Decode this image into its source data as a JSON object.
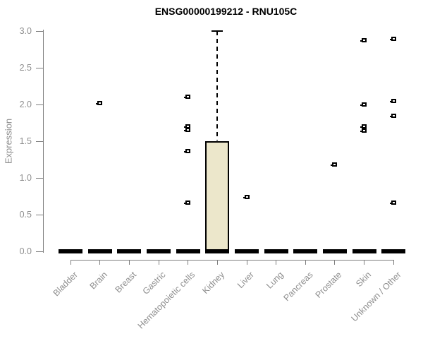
{
  "chart_data": {
    "type": "box",
    "title": "ENSG00000199212 - RNU105C",
    "ylabel": "Expression",
    "xlabel": "",
    "ylim": [
      0.0,
      3.0
    ],
    "ytick_labels": [
      "0.0",
      "0.5",
      "1.0",
      "1.5",
      "2.0",
      "2.5",
      "3.0"
    ],
    "ytick_values": [
      0.0,
      0.5,
      1.0,
      1.5,
      2.0,
      2.5,
      3.0
    ],
    "grid": false,
    "legend": null,
    "categories": [
      "Bladder",
      "Brain",
      "Breast",
      "Gastric",
      "Hematopoietic cells",
      "Kidney",
      "Liver",
      "Lung",
      "Pancreas",
      "Prostate",
      "Skin",
      "Unknown / Other"
    ],
    "boxes": [
      {
        "category": "Bladder",
        "low_whisker": 0,
        "q1": 0,
        "median": 0,
        "q3": 0,
        "high_whisker": 0,
        "outliers": []
      },
      {
        "category": "Brain",
        "low_whisker": 0,
        "q1": 0,
        "median": 0,
        "q3": 0,
        "high_whisker": 0,
        "outliers": [
          2.02
        ]
      },
      {
        "category": "Breast",
        "low_whisker": 0,
        "q1": 0,
        "median": 0,
        "q3": 0,
        "high_whisker": 0,
        "outliers": []
      },
      {
        "category": "Gastric",
        "low_whisker": 0,
        "q1": 0,
        "median": 0,
        "q3": 0,
        "high_whisker": 0,
        "outliers": []
      },
      {
        "category": "Hematopoietic cells",
        "low_whisker": 0,
        "q1": 0,
        "median": 0,
        "q3": 0,
        "high_whisker": 0,
        "outliers": [
          2.11,
          1.71,
          1.66,
          1.37,
          0.67
        ]
      },
      {
        "category": "Kidney",
        "low_whisker": 0,
        "q1": 0,
        "median": 0,
        "q3": 1.51,
        "high_whisker": 3.0,
        "outliers": []
      },
      {
        "category": "Liver",
        "low_whisker": 0,
        "q1": 0,
        "median": 0,
        "q3": 0,
        "high_whisker": 0,
        "outliers": [
          0.75
        ]
      },
      {
        "category": "Lung",
        "low_whisker": 0,
        "q1": 0,
        "median": 0,
        "q3": 0,
        "high_whisker": 0,
        "outliers": []
      },
      {
        "category": "Pancreas",
        "low_whisker": 0,
        "q1": 0,
        "median": 0,
        "q3": 0,
        "high_whisker": 0,
        "outliers": []
      },
      {
        "category": "Prostate",
        "low_whisker": 0,
        "q1": 0,
        "median": 0,
        "q3": 0,
        "high_whisker": 0,
        "outliers": [
          1.19
        ]
      },
      {
        "category": "Skin",
        "low_whisker": 0,
        "q1": 0,
        "median": 0,
        "q3": 0,
        "high_whisker": 0,
        "outliers": [
          2.88,
          2.0,
          1.71,
          1.65
        ]
      },
      {
        "category": "Unknown / Other",
        "low_whisker": 0,
        "q1": 0,
        "median": 0,
        "q3": 0,
        "high_whisker": 0,
        "outliers": [
          2.9,
          2.05,
          1.85,
          0.67
        ]
      }
    ],
    "colors": {
      "box_fill": "#ece7cb",
      "box_border": "#000000",
      "median": "#000000",
      "axis": "#7f7f7f",
      "tick_text": "#8e8e8e",
      "title_text": "#000000",
      "background": "#ffffff"
    }
  }
}
